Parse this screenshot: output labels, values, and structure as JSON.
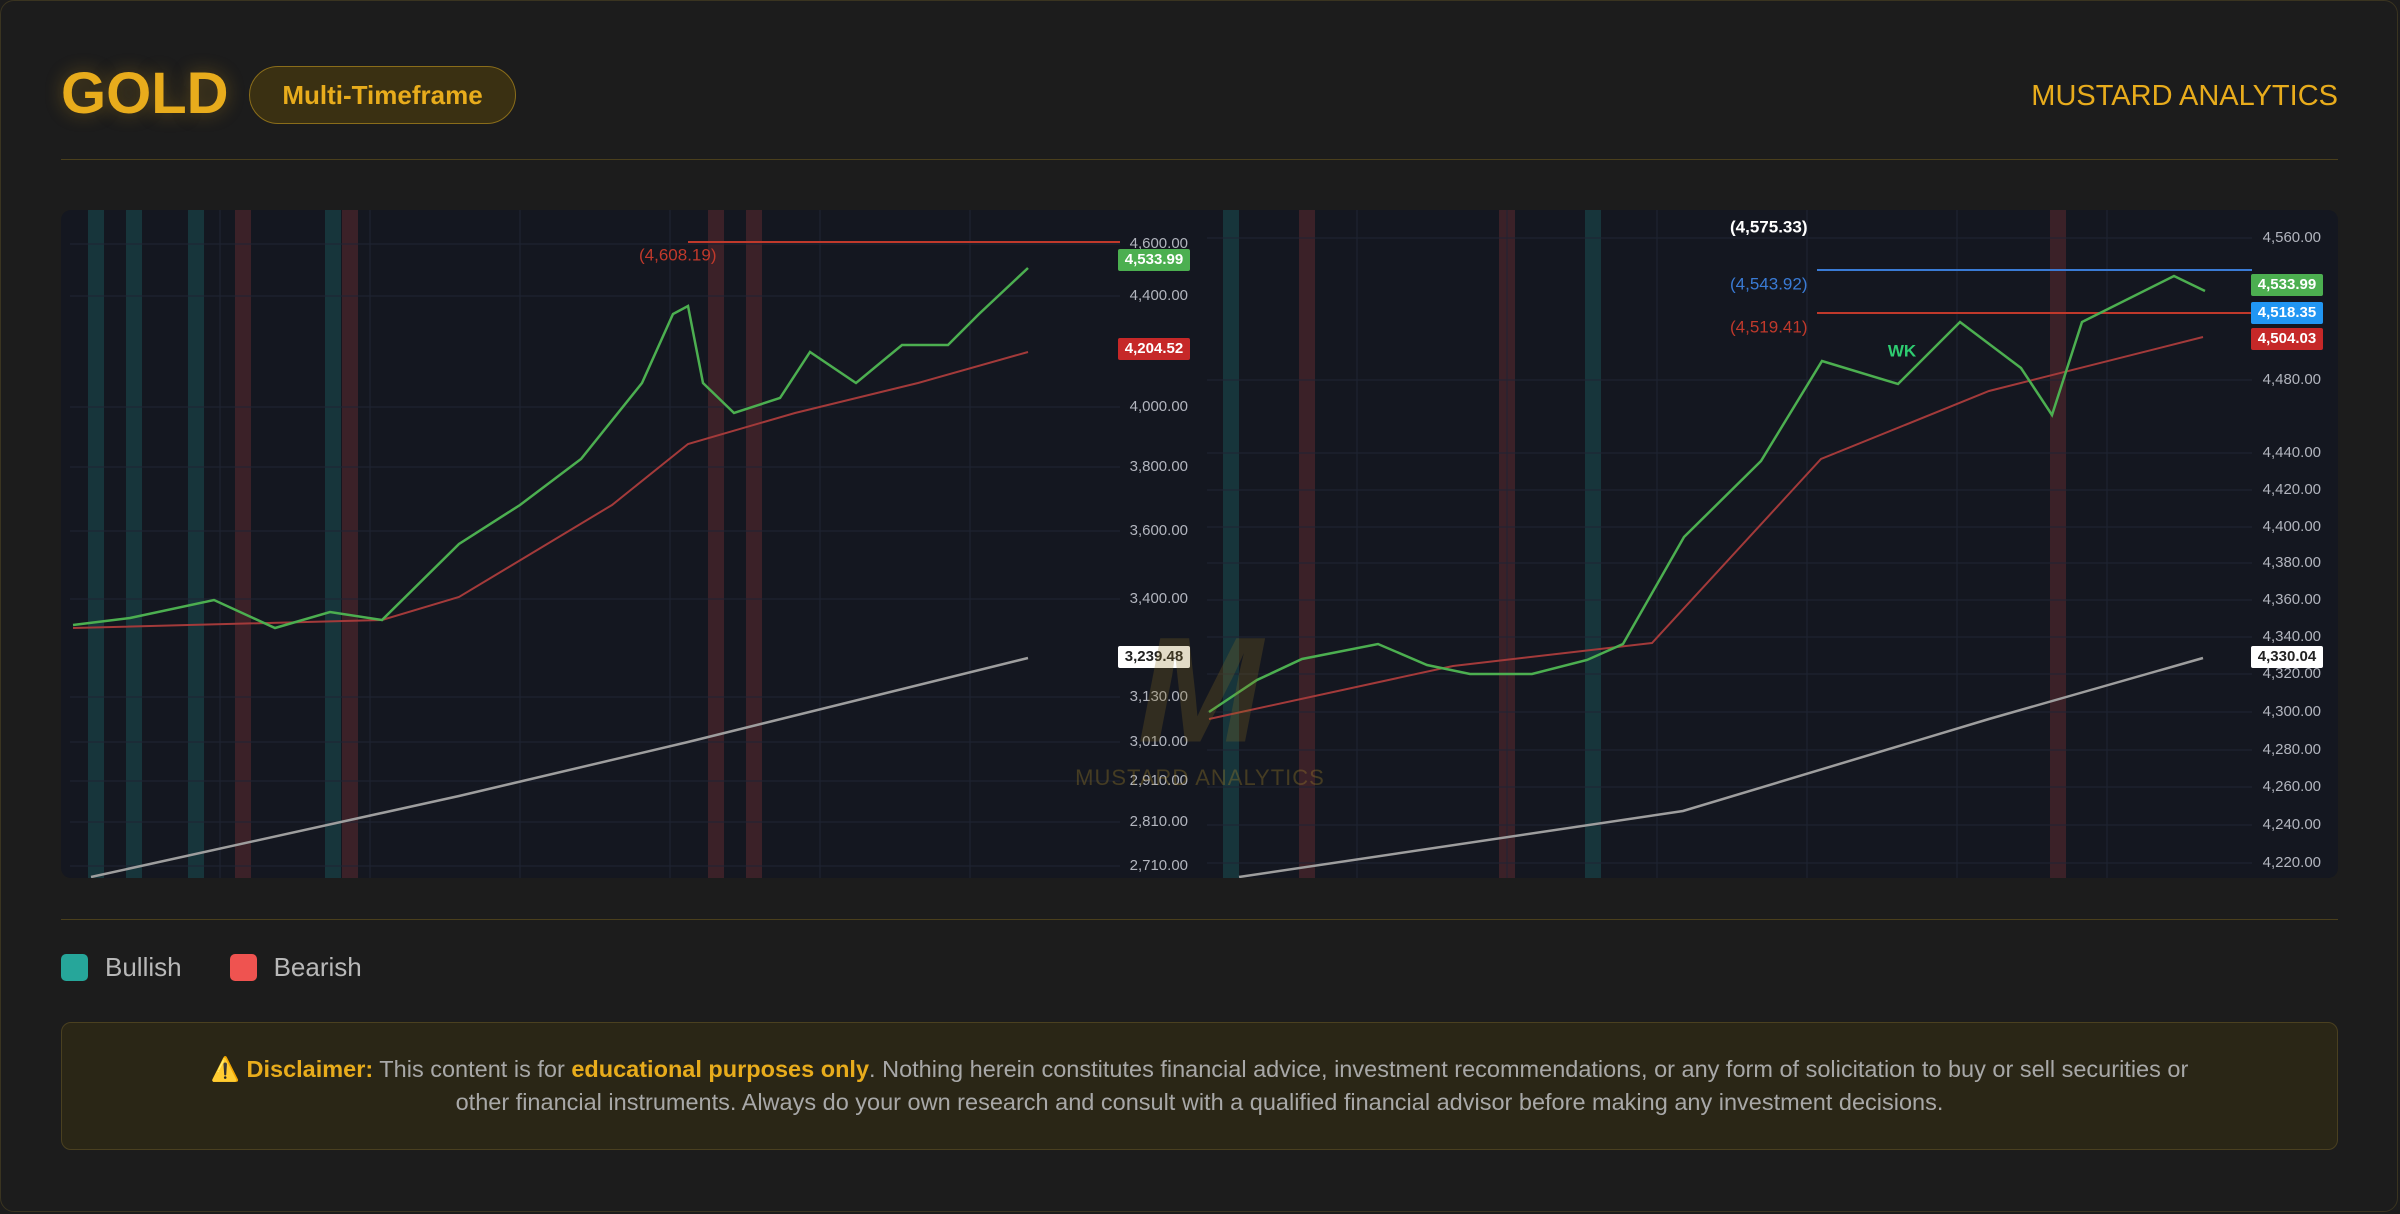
{
  "header": {
    "title": "GOLD",
    "badge": "Multi-Timeframe",
    "brand": "MUSTARD ANALYTICS"
  },
  "panels": [
    {
      "axis_labels": [
        "4,600.00",
        "4,400.00",
        "4,000.00",
        "3,800.00",
        "3,600.00",
        "3,400.00",
        "3,130.00",
        "3,010.00",
        "2,910.00",
        "2,810.00",
        "2,710.00"
      ],
      "price_tags": [
        {
          "label": "4,533.99",
          "color": "#4caf50"
        },
        {
          "label": "4,204.52",
          "color": "#c62828"
        },
        {
          "label": "3,239.48",
          "color": "#ffffff"
        }
      ],
      "annotations": [
        {
          "label": "(4,608.19)",
          "color": "#c0392b"
        }
      ]
    },
    {
      "axis_labels": [
        "4,560.00",
        "4,480.00",
        "4,440.00",
        "4,420.00",
        "4,400.00",
        "4,380.00",
        "4,360.00",
        "4,340.00",
        "4,320.00",
        "4,300.00",
        "4,280.00",
        "4,260.00",
        "4,240.00",
        "4,220.00"
      ],
      "price_tags": [
        {
          "label": "4,533.99",
          "color": "#4caf50"
        },
        {
          "label": "4,518.35",
          "color": "#2196f3"
        },
        {
          "label": "4,504.03",
          "color": "#c62828"
        },
        {
          "label": "4,330.04",
          "color": "#ffffff"
        }
      ],
      "annotations": [
        {
          "label": "(4,575.33)",
          "color": "#ffffff"
        },
        {
          "label": "(4,543.92)",
          "color": "#3a7bd5"
        },
        {
          "label": "(4,519.41)",
          "color": "#c0392b"
        },
        {
          "label": "WK",
          "color": "#2ecc71"
        }
      ]
    }
  ],
  "watermark": "MUSTARD ANALYTICS",
  "legend": [
    {
      "label": "Bullish",
      "color": "#26a69a"
    },
    {
      "label": "Bearish",
      "color": "#ef5350"
    }
  ],
  "disclaimer": {
    "label": "Disclaimer:",
    "text1": " This content is for ",
    "emphasis": "educational purposes only",
    "text2": ". Nothing herein constitutes financial advice, investment recommendations, or any form of solicitation to buy or sell securities or other financial instruments. Always do your own research and consult with a qualified financial advisor before making any investment decisions."
  }
}
